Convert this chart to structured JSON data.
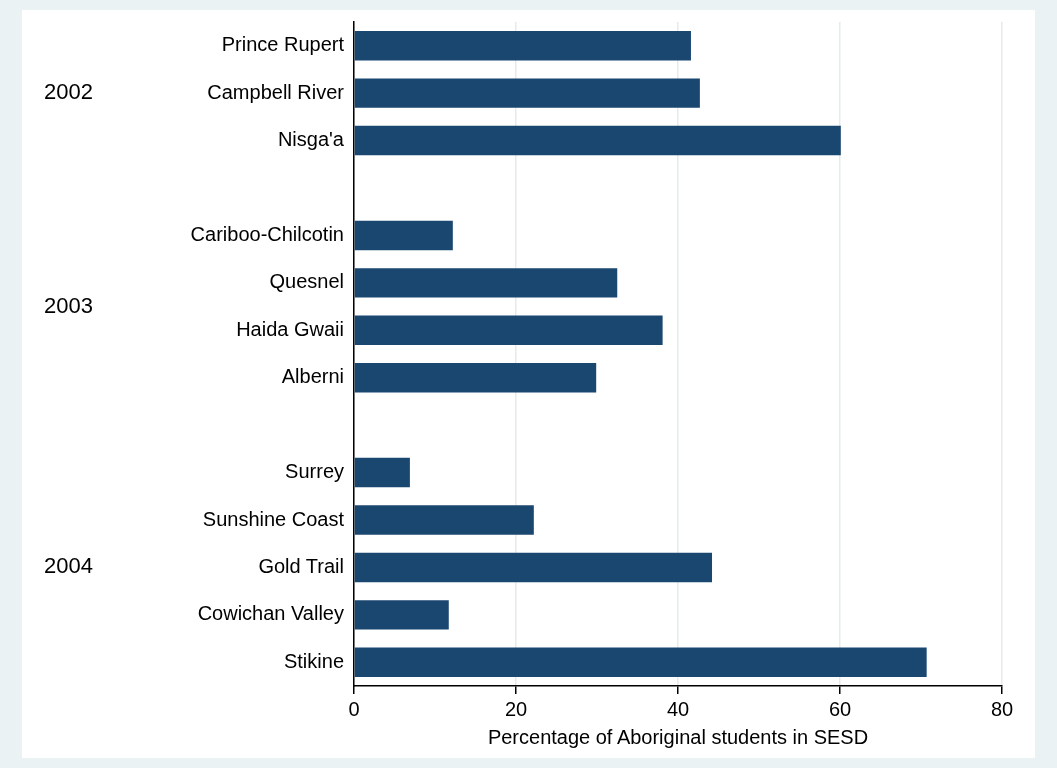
{
  "chart_data": {
    "type": "bar",
    "orientation": "horizontal",
    "xlabel": "Percentage of Aboriginal students in SESD",
    "categories": [
      "Prince Rupert",
      "Campbell River",
      "Nisga'a",
      null,
      "Cariboo-Chilcotin",
      "Quesnel",
      "Haida Gwaii",
      "Alberni",
      null,
      "Surrey",
      "Sunshine Coast",
      "Gold Trail",
      "Cowichan Valley",
      "Stikine"
    ],
    "values": [
      41.6,
      42.7,
      60.1,
      null,
      12.2,
      32.5,
      38.1,
      29.9,
      null,
      6.9,
      22.2,
      44.2,
      11.7,
      70.7
    ],
    "color": "#1a476f",
    "xlim": [
      0,
      80
    ],
    "xticks": [
      0,
      20,
      40,
      60,
      80
    ],
    "grid": "x",
    "legend": false,
    "annotations": [
      "2002",
      "2003",
      "2004"
    ]
  }
}
